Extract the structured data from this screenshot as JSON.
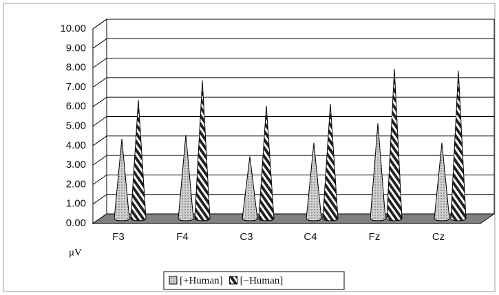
{
  "chart_data": {
    "type": "cone3d",
    "y_label": "μV",
    "categories": [
      "F3",
      "F4",
      "C3",
      "C4",
      "Fz",
      "Cz"
    ],
    "series": [
      {
        "name": "[+Human]",
        "color": "#d0d0d0",
        "values": [
          4.1,
          4.3,
          3.2,
          3.9,
          4.9,
          3.9
        ]
      },
      {
        "name": "[−Human]",
        "color": "#222222",
        "values": [
          6.1,
          7.1,
          5.8,
          5.9,
          7.7,
          7.6
        ]
      }
    ],
    "ylim": [
      0,
      10
    ],
    "yticks": [
      {
        "value": 0,
        "label": "0.00"
      },
      {
        "value": 1,
        "label": "1.00"
      },
      {
        "value": 2,
        "label": "2.00"
      },
      {
        "value": 3,
        "label": "3.00"
      },
      {
        "value": 4,
        "label": "4.00"
      },
      {
        "value": 5,
        "label": "5.00"
      },
      {
        "value": 6,
        "label": "6.00"
      },
      {
        "value": 7,
        "label": "7.00"
      },
      {
        "value": 8,
        "label": "8.00"
      },
      {
        "value": 9,
        "label": "9.00"
      },
      {
        "value": 10,
        "label": "10.00"
      }
    ],
    "grid": true,
    "legend": "bottom"
  }
}
